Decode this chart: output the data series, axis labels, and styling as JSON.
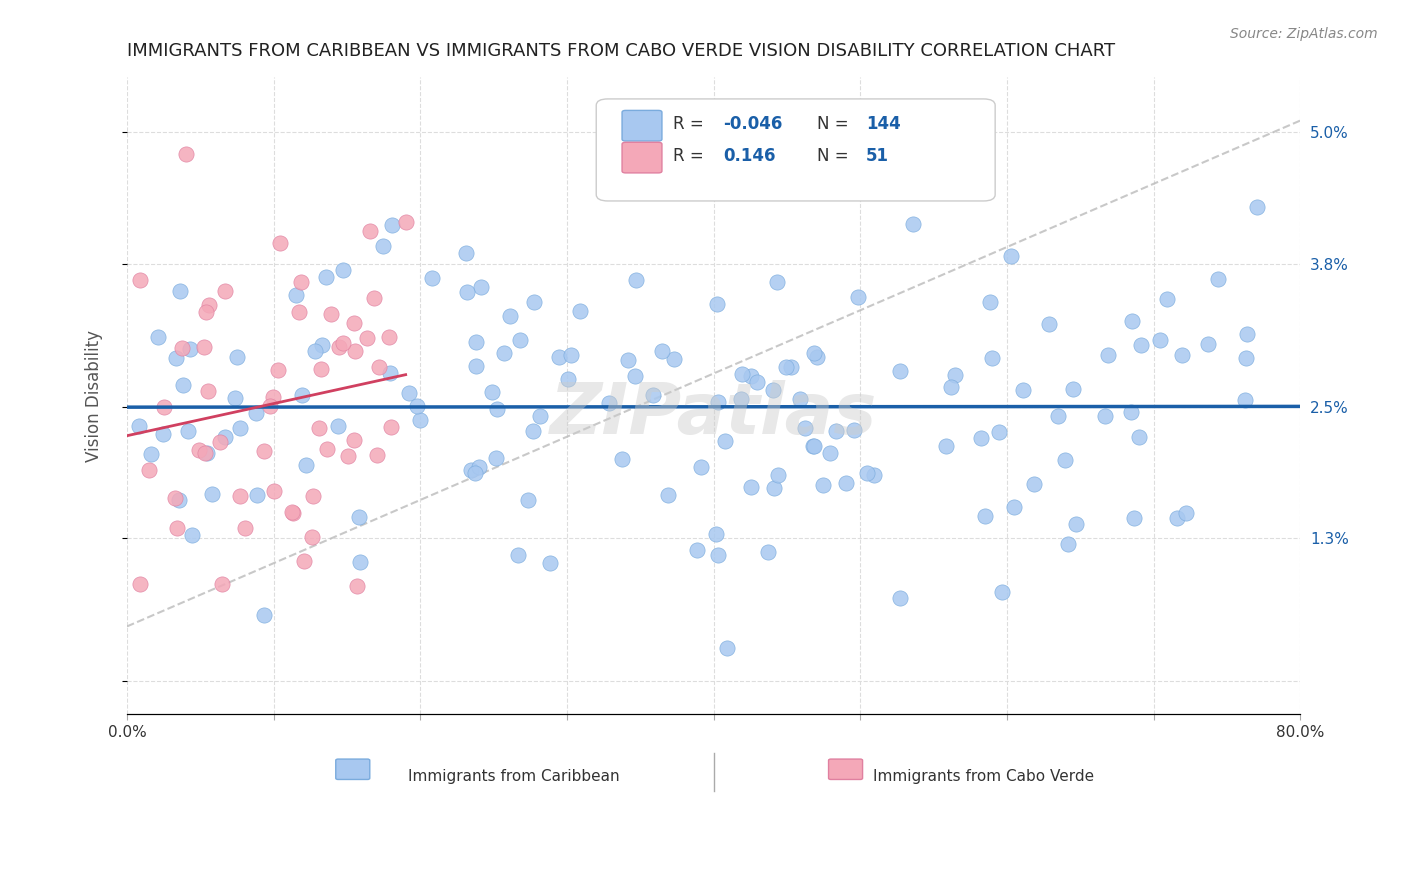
{
  "title": "IMMIGRANTS FROM CARIBBEAN VS IMMIGRANTS FROM CABO VERDE VISION DISABILITY CORRELATION CHART",
  "source": "Source: ZipAtlas.com",
  "ylabel": "Vision Disability",
  "xlim": [
    0.0,
    80.0
  ],
  "ylim": [
    -0.3,
    5.5
  ],
  "caribbean_color": "#a8c8f0",
  "cabo_verde_color": "#f4a8b8",
  "caribbean_edge": "#7aabdd",
  "cabo_verde_edge": "#e080a0",
  "trend_caribbean_color": "#1a5fa8",
  "trend_cabo_verde_color": "#d04060",
  "ref_line_color": "#bbbbbb",
  "grid_color": "#dddddd",
  "caribbean_R": -0.046,
  "caribbean_N": 144,
  "cabo_verde_R": 0.146,
  "cabo_verde_N": 51,
  "watermark": "ZIPatlas",
  "legend_label_caribbean": "Immigrants from Caribbean",
  "legend_label_cabo_verde": "Immigrants from Cabo Verde",
  "right_yticks": [
    0.0,
    1.3,
    2.5,
    3.8,
    5.0
  ],
  "right_ytick_labels": [
    "",
    "1.3%",
    "2.5%",
    "3.8%",
    "5.0%"
  ]
}
